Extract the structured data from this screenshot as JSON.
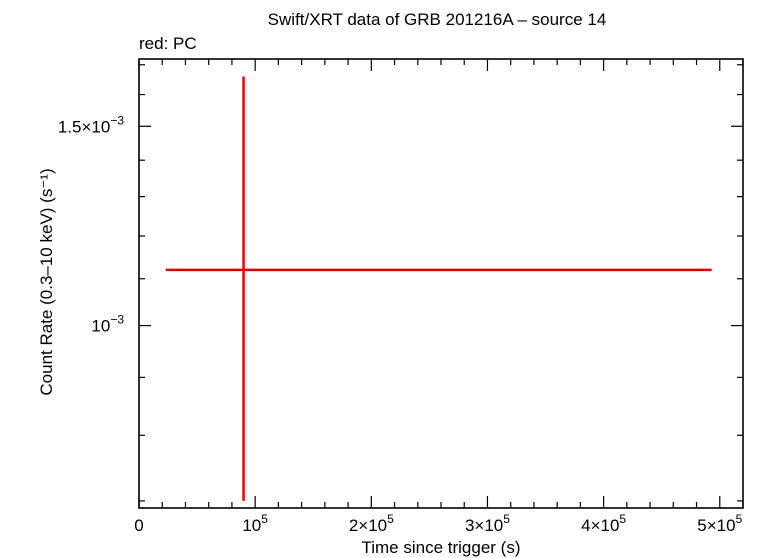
{
  "chart_data": {
    "type": "scatter",
    "title": "Swift/XRT data of GRB 201216A – source 14",
    "subtitle": "red: PC",
    "xlabel": "Time since trigger (s)",
    "ylabel": "Count Rate (0.3–10 keV) (s⁻¹)",
    "xlim": [
      0,
      520000
    ],
    "ylim": [
      0.00069,
      0.00172
    ],
    "y_scale": "log",
    "x_ticks": [
      {
        "value": 0,
        "mant": "0",
        "exp": ""
      },
      {
        "value": 100000,
        "mant": "10",
        "exp": "5"
      },
      {
        "value": 200000,
        "mant": "2×10",
        "exp": "5"
      },
      {
        "value": 300000,
        "mant": "3×10",
        "exp": "5"
      },
      {
        "value": 400000,
        "mant": "4×10",
        "exp": "5"
      },
      {
        "value": 500000,
        "mant": "5×10",
        "exp": "5"
      }
    ],
    "y_ticks": [
      {
        "value": 0.001,
        "mant": "10",
        "exp": "−3"
      },
      {
        "value": 0.0015,
        "mant": "1.5×10",
        "exp": "−3"
      }
    ],
    "series": [
      {
        "color": "#e00000",
        "points": [
          {
            "x": 90000,
            "y": 0.00112,
            "xerr": [
              67000,
              403000
            ],
            "yerr": [
              0.00042,
              0.00054
            ]
          }
        ]
      }
    ]
  }
}
